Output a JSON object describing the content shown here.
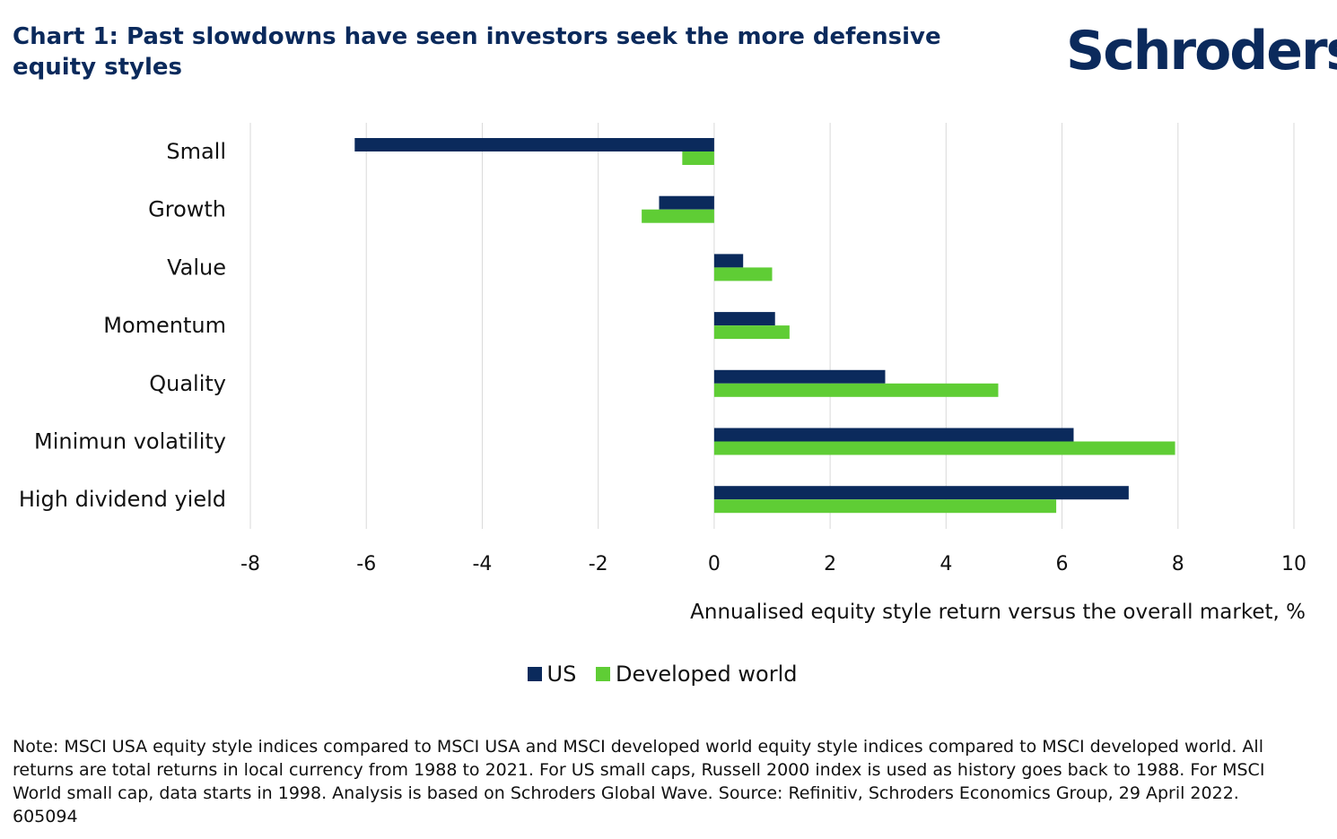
{
  "header": {
    "title": "Chart 1: Past slowdowns have seen investors seek the more defensive equity styles",
    "logo_text": "Schroders"
  },
  "colors": {
    "brand": "#0b2a5c",
    "us": "#0b2a5c",
    "developed_world": "#5fcd35",
    "grid": "#d9d9d9"
  },
  "chart_data": {
    "type": "bar",
    "orientation": "horizontal",
    "categories": [
      "Small",
      "Growth",
      "Value",
      "Momentum",
      "Quality",
      "Minimun volatility",
      "High dividend yield"
    ],
    "series": [
      {
        "name": "US",
        "values": [
          -6.2,
          -0.95,
          0.5,
          1.05,
          2.95,
          6.2,
          7.15
        ]
      },
      {
        "name": "Developed world",
        "values": [
          -0.55,
          -1.25,
          1.0,
          1.3,
          4.9,
          7.95,
          5.9
        ]
      }
    ],
    "xlim": [
      -8,
      10
    ],
    "xticks": [
      -8,
      -6,
      -4,
      -2,
      0,
      2,
      4,
      6,
      8,
      10
    ],
    "xlabel": "Annualised equity style return versus the overall market, %",
    "ylabel": "",
    "grid": "vertical",
    "legend": "bottom-center"
  },
  "footnote": "Note: MSCI USA equity style indices compared to MSCI USA and MSCI developed world equity style indices compared to MSCI developed world. All returns are total returns in local currency from 1988 to 2021. For US small caps, Russell 2000 index is used as history goes back to 1988. For MSCI World small cap, data starts in 1998. Analysis is based on Schroders Global Wave. Source: Refinitiv, Schroders Economics Group, 29 April 2022. 605094"
}
